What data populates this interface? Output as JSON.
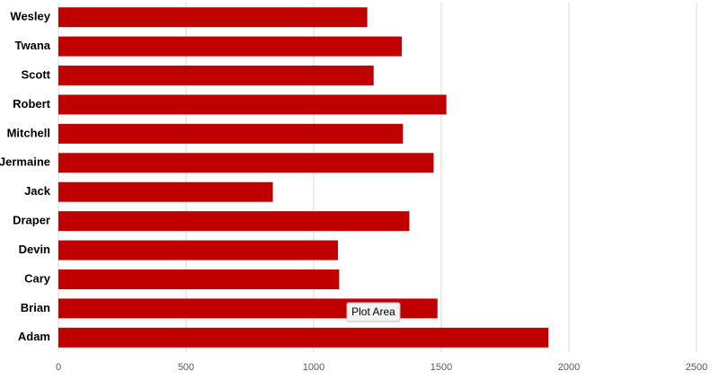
{
  "chart_data": {
    "type": "bar",
    "orientation": "horizontal",
    "categories": [
      "Wesley",
      "Twana",
      "Scott",
      "Robert",
      "Mitchell",
      "Jermaine",
      "Jack",
      "Draper",
      "Devin",
      "Cary",
      "Brian",
      "Adam"
    ],
    "values": [
      1210,
      1345,
      1235,
      1520,
      1350,
      1470,
      840,
      1375,
      1095,
      1100,
      1485,
      1920
    ],
    "color": "#c00000",
    "xlim": [
      0,
      2500
    ],
    "xticks": [
      0,
      500,
      1000,
      1500,
      2000,
      2500
    ],
    "grid": true,
    "tooltip": "Plot Area"
  }
}
